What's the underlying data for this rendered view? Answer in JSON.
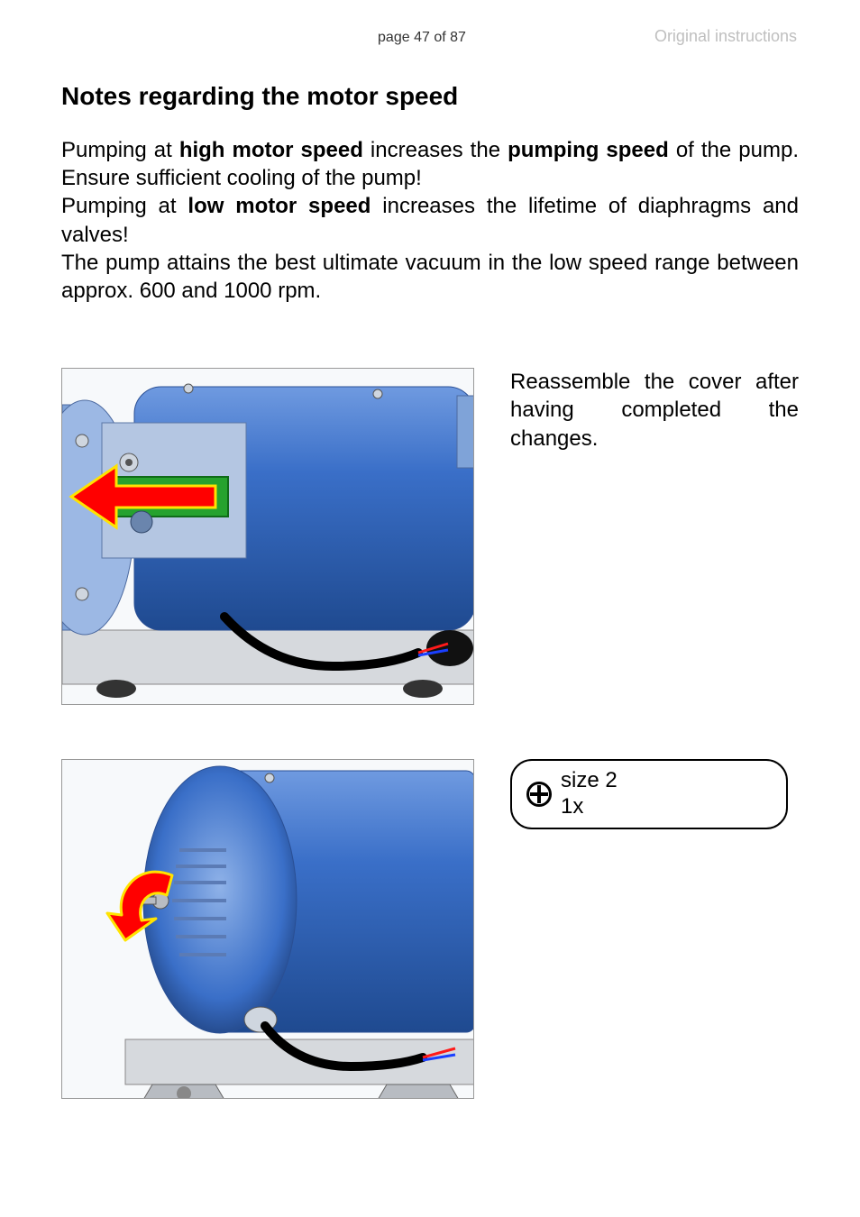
{
  "header": {
    "page_number_label": "page 47 of 87",
    "doc_type_label": "Original instructions"
  },
  "heading": "Notes regarding the motor speed",
  "paragraph": {
    "segments": [
      {
        "text": "Pumping at ",
        "bold": false
      },
      {
        "text": "high motor speed",
        "bold": true
      },
      {
        "text": " increases the ",
        "bold": false
      },
      {
        "text": "pumping speed",
        "bold": true
      },
      {
        "text": " of the pump. Ensure sufficient cooling of the pump!",
        "bold": false
      },
      {
        "text": "\n",
        "bold": false
      },
      {
        "text": "Pumping at ",
        "bold": false
      },
      {
        "text": "low motor speed",
        "bold": true
      },
      {
        "text": " increases the lifetime of diaphragms and valves!",
        "bold": false
      },
      {
        "text": "\n",
        "bold": false
      },
      {
        "text": "The pump attains the best ultimate vacuum in the low speed range between approx. 600 and 1000 rpm.",
        "bold": false
      }
    ]
  },
  "figure1": {
    "caption": "Reassemble the cover after having completed the changes.",
    "arrow_color": "#ff0000",
    "arrow_outline": "#ffe300",
    "component_color": "#26a22e",
    "pump_body_color": "#3a6fc8",
    "pump_body_shade": "#2a4f94",
    "base_plate_color": "#d6d9dd",
    "cable_color": "#000000",
    "wire_colors": [
      "#ff1a1a",
      "#1a3fff"
    ],
    "knob_color": "#111111"
  },
  "figure2": {
    "arrow_color": "#ff0000",
    "arrow_outline": "#ffe300",
    "pump_body_color": "#3a6fc8",
    "pump_body_shade": "#2a4f94",
    "base_plate_color": "#d6d9dd",
    "cable_color": "#000000",
    "wire_colors": [
      "#ff1a1a",
      "#1a3fff"
    ],
    "screw_color": "#b8bcc2"
  },
  "tool_callout": {
    "icon": "phillips-screwdriver",
    "size_label": "size 2",
    "count_label": "1x"
  },
  "colors": {
    "text": "#000000",
    "muted": "#bfbfbf",
    "figure_border": "#999999",
    "figure_bg": "#f7f9fb"
  },
  "fonts": {
    "body_size_pt": 18,
    "heading_size_pt": 21,
    "header_size_pt": 12
  }
}
